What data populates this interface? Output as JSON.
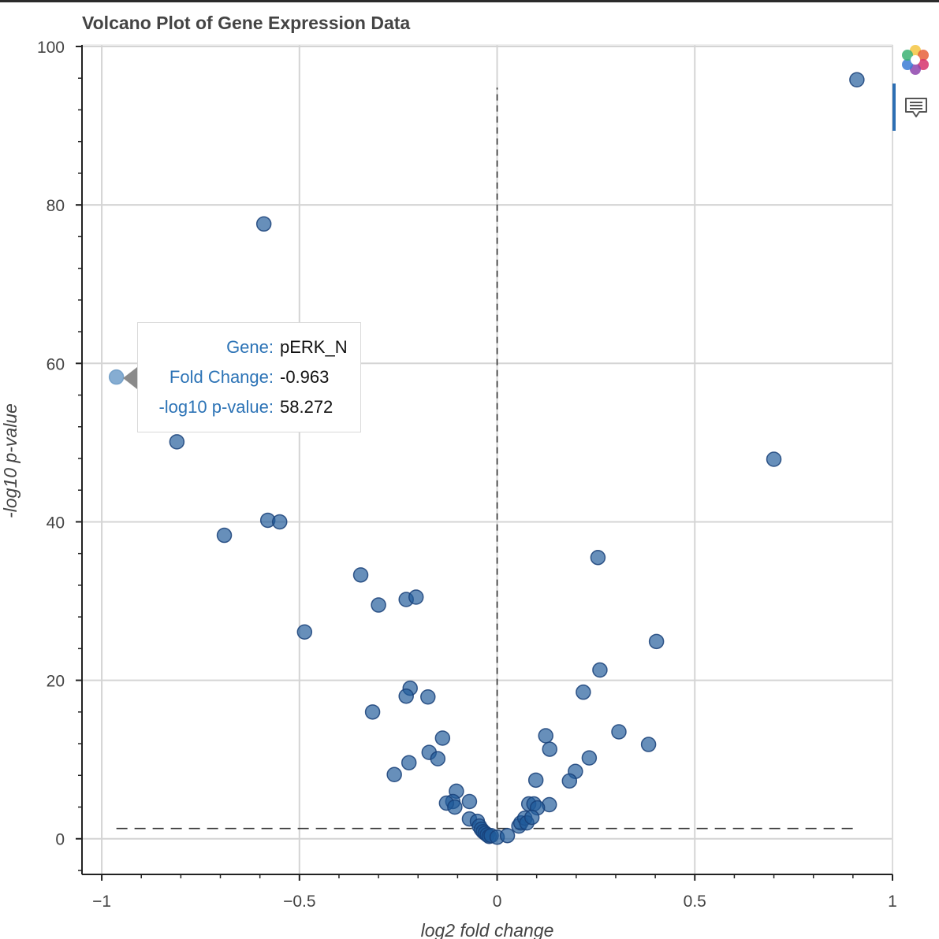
{
  "chart_data": {
    "type": "scatter",
    "title": "Volcano Plot of Gene Expression Data",
    "xlabel": "log2 fold change",
    "ylabel": "-log10 p-value",
    "xlim": [
      -1.05,
      1.0
    ],
    "ylim": [
      -4.5,
      100.2
    ],
    "x_ticks": [
      -1,
      -0.5,
      0,
      0.5,
      1
    ],
    "x_tick_labels": [
      "−1",
      "−0.5",
      "0",
      "0.5",
      "1"
    ],
    "y_ticks": [
      0,
      20,
      40,
      60,
      80,
      100
    ],
    "y_tick_labels": [
      "0",
      "20",
      "40",
      "60",
      "80",
      "100"
    ],
    "grid": true,
    "marker_color": "#1f5a99",
    "highlight_color": "#7fa9d0",
    "reference_lines": [
      {
        "orientation": "vertical",
        "x": 0,
        "y_from": 1.3,
        "y_to": 94.8
      },
      {
        "orientation": "horizontal",
        "y": 1.3,
        "x_from": -0.963,
        "x_to": 0.91
      }
    ],
    "points": [
      {
        "x": -0.963,
        "y": 58.272,
        "highlighted": true
      },
      {
        "x": 0.91,
        "y": 95.8
      },
      {
        "x": -0.59,
        "y": 77.6
      },
      {
        "x": 0.7,
        "y": 47.9
      },
      {
        "x": -0.81,
        "y": 50.1
      },
      {
        "x": -0.58,
        "y": 40.2
      },
      {
        "x": -0.55,
        "y": 40.0
      },
      {
        "x": -0.69,
        "y": 38.3
      },
      {
        "x": 0.255,
        "y": 35.5
      },
      {
        "x": -0.345,
        "y": 33.3
      },
      {
        "x": -0.3,
        "y": 29.5
      },
      {
        "x": -0.23,
        "y": 30.2
      },
      {
        "x": -0.205,
        "y": 30.5
      },
      {
        "x": -0.487,
        "y": 26.1
      },
      {
        "x": 0.403,
        "y": 24.9
      },
      {
        "x": 0.26,
        "y": 21.3
      },
      {
        "x": -0.22,
        "y": 19.0
      },
      {
        "x": -0.23,
        "y": 18.0
      },
      {
        "x": -0.175,
        "y": 17.9
      },
      {
        "x": 0.218,
        "y": 18.5
      },
      {
        "x": -0.315,
        "y": 16.0
      },
      {
        "x": 0.308,
        "y": 13.5
      },
      {
        "x": 0.123,
        "y": 13.0
      },
      {
        "x": 0.383,
        "y": 11.9
      },
      {
        "x": 0.133,
        "y": 11.3
      },
      {
        "x": -0.138,
        "y": 12.7
      },
      {
        "x": -0.172,
        "y": 10.9
      },
      {
        "x": -0.15,
        "y": 10.1
      },
      {
        "x": 0.233,
        "y": 10.2
      },
      {
        "x": -0.223,
        "y": 9.6
      },
      {
        "x": 0.198,
        "y": 8.5
      },
      {
        "x": -0.26,
        "y": 8.1
      },
      {
        "x": 0.183,
        "y": 7.3
      },
      {
        "x": 0.098,
        "y": 7.4
      },
      {
        "x": -0.103,
        "y": 6.0
      },
      {
        "x": -0.112,
        "y": 4.7
      },
      {
        "x": -0.128,
        "y": 4.5
      },
      {
        "x": -0.107,
        "y": 4.0
      },
      {
        "x": -0.07,
        "y": 4.7
      },
      {
        "x": 0.08,
        "y": 4.4
      },
      {
        "x": 0.093,
        "y": 4.4
      },
      {
        "x": 0.132,
        "y": 4.3
      },
      {
        "x": 0.102,
        "y": 3.9
      },
      {
        "x": -0.07,
        "y": 2.5
      },
      {
        "x": -0.05,
        "y": 2.2
      },
      {
        "x": -0.045,
        "y": 1.6
      },
      {
        "x": -0.04,
        "y": 1.2
      },
      {
        "x": -0.035,
        "y": 0.9
      },
      {
        "x": -0.03,
        "y": 0.7
      },
      {
        "x": -0.025,
        "y": 0.5
      },
      {
        "x": -0.02,
        "y": 0.3
      },
      {
        "x": -0.015,
        "y": 0.4
      },
      {
        "x": 0.0,
        "y": 0.2
      },
      {
        "x": 0.026,
        "y": 0.4
      },
      {
        "x": 0.055,
        "y": 1.6
      },
      {
        "x": 0.06,
        "y": 2.0
      },
      {
        "x": 0.07,
        "y": 2.6
      },
      {
        "x": 0.075,
        "y": 2.0
      },
      {
        "x": 0.088,
        "y": 2.7
      }
    ]
  },
  "tooltip": {
    "rows": [
      {
        "label": "Gene:",
        "value": "pERK_N"
      },
      {
        "label": "Fold Change:",
        "value": "-0.963"
      },
      {
        "label": "-log10 p-value:",
        "value": "58.272"
      }
    ]
  },
  "toolbar": {
    "logo_icon": "bokeh-logo-icon",
    "hover_tool_icon": "hover-tool-icon",
    "active_color": "#2c6eb3"
  }
}
